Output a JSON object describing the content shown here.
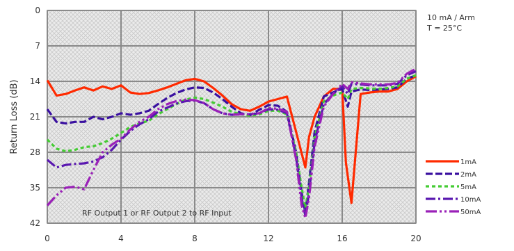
{
  "chart_data": {
    "type": "line",
    "title": "",
    "xlabel": "",
    "ylabel": "Return Loss (dB)",
    "xlim": [
      0,
      20
    ],
    "ylim": [
      0,
      42
    ],
    "y_inverted": true,
    "x_ticks": [
      "0",
      "4",
      "8",
      "12",
      "16",
      "20"
    ],
    "y_ticks": [
      "0",
      "7",
      "14",
      "21",
      "28",
      "35",
      "42"
    ],
    "grid": true,
    "legend_position": "right",
    "notes": [
      "10 mA / Arm",
      "T = 25°C"
    ],
    "annotation": "RF Output 1 or RF Output 2 to RF Input",
    "series": [
      {
        "name": "1mA",
        "color": "#ff2a00",
        "dash": "solid",
        "x": [
          0,
          0.5,
          1,
          1.5,
          2,
          2.5,
          3,
          3.5,
          4,
          4.5,
          5,
          5.5,
          6,
          6.5,
          7,
          7.5,
          8,
          8.5,
          9,
          9.5,
          10,
          10.5,
          11,
          11.5,
          12,
          12.5,
          13,
          13.5,
          14,
          14.2,
          14.5,
          15,
          15.5,
          16,
          16.2,
          16.5,
          17,
          17.5,
          18,
          18.5,
          19,
          19.5,
          20
        ],
        "y": [
          13.8,
          16.8,
          16.5,
          15.8,
          15.2,
          15.8,
          15.0,
          15.5,
          14.8,
          16.2,
          16.5,
          16.3,
          15.8,
          15.2,
          14.5,
          13.8,
          13.5,
          14.0,
          15.3,
          16.8,
          18.5,
          19.5,
          19.8,
          19.0,
          18.0,
          17.5,
          17.0,
          24.0,
          31.0,
          25.0,
          21.0,
          17.0,
          15.5,
          15.5,
          30.0,
          38.0,
          16.5,
          16.2,
          16.0,
          16.0,
          15.5,
          14.0,
          13.0
        ]
      },
      {
        "name": "2mA",
        "color": "#3a10a0",
        "dash": "10,4",
        "x": [
          0,
          0.5,
          1,
          1.5,
          2,
          2.5,
          3,
          3.5,
          4,
          4.5,
          5,
          5.5,
          6,
          6.5,
          7,
          7.5,
          8,
          8.5,
          9,
          9.5,
          10,
          10.5,
          11,
          11.5,
          12,
          12.5,
          13,
          13.5,
          13.8,
          14,
          14.2,
          14.5,
          15,
          15.5,
          16,
          16.3,
          16.5,
          17,
          17.5,
          18,
          18.5,
          19,
          19.5,
          20
        ],
        "y": [
          19.5,
          22.0,
          22.3,
          22.0,
          22.0,
          21.0,
          21.5,
          21.0,
          20.3,
          20.6,
          20.3,
          19.8,
          18.5,
          17.3,
          16.3,
          15.6,
          15.2,
          15.3,
          16.2,
          17.5,
          19.0,
          20.3,
          20.7,
          19.6,
          18.7,
          18.8,
          20.0,
          28.0,
          36.0,
          40.0,
          34.0,
          24.0,
          17.0,
          16.2,
          15.5,
          19.0,
          16.0,
          15.6,
          15.7,
          15.6,
          15.5,
          15.2,
          13.5,
          12.8
        ]
      },
      {
        "name": "5mA",
        "color": "#44cc33",
        "dash": "5,4",
        "x": [
          0,
          0.5,
          1,
          1.5,
          2,
          2.5,
          3,
          3.5,
          4,
          4.5,
          5,
          5.5,
          6,
          6.5,
          7,
          7.5,
          8,
          8.5,
          9,
          9.5,
          10,
          10.5,
          11,
          11.5,
          12,
          12.5,
          13,
          13.5,
          13.8,
          14,
          14.2,
          14.5,
          15,
          15.5,
          16,
          16.3,
          16.5,
          17,
          17.5,
          18,
          18.5,
          19,
          19.5,
          20
        ],
        "y": [
          25.5,
          27.3,
          27.8,
          27.5,
          27.0,
          26.8,
          26.2,
          25.3,
          24.2,
          23.0,
          22.3,
          21.8,
          20.5,
          19.5,
          18.5,
          17.6,
          17.2,
          17.5,
          18.2,
          19.0,
          20.0,
          20.5,
          20.8,
          20.5,
          19.8,
          19.8,
          20.5,
          28.0,
          35.0,
          39.0,
          35.0,
          25.0,
          18.0,
          16.8,
          16.2,
          17.5,
          15.5,
          15.3,
          15.4,
          15.5,
          15.3,
          15.0,
          13.5,
          12.8
        ]
      },
      {
        "name": "10mA",
        "color": "#5a18b0",
        "dash": "14,4,3,4",
        "x": [
          0,
          0.5,
          1,
          1.5,
          2,
          2.5,
          3,
          3.5,
          4,
          4.5,
          5,
          5.5,
          6,
          6.5,
          7,
          7.5,
          8,
          8.5,
          9,
          9.5,
          10,
          10.5,
          11,
          11.5,
          12,
          12.5,
          13,
          13.5,
          13.8,
          14,
          14.2,
          14.5,
          15,
          15.5,
          16,
          16.3,
          16.5,
          17,
          17.5,
          18,
          18.5,
          19,
          19.5,
          20
        ],
        "y": [
          29.5,
          31.0,
          30.5,
          30.3,
          30.2,
          29.8,
          29.0,
          27.5,
          25.5,
          23.8,
          22.5,
          21.5,
          20.0,
          19.2,
          18.4,
          17.9,
          17.8,
          18.3,
          19.5,
          20.3,
          20.6,
          20.5,
          20.5,
          20.3,
          19.5,
          19.6,
          20.3,
          29.0,
          37.0,
          40.5,
          36.0,
          26.0,
          18.5,
          16.5,
          15.0,
          16.5,
          14.5,
          14.6,
          14.8,
          14.8,
          14.8,
          14.5,
          12.8,
          12.0
        ]
      },
      {
        "name": "50mA",
        "color": "#9a20b8",
        "dash": "16,4,3,4,3,4",
        "x": [
          0,
          0.5,
          1,
          1.5,
          2,
          2.5,
          3,
          3.5,
          4,
          4.5,
          5,
          5.5,
          6,
          6.5,
          7,
          7.5,
          8,
          8.5,
          9,
          9.5,
          10,
          10.5,
          11,
          11.5,
          12,
          12.5,
          13,
          13.5,
          13.8,
          14,
          14.2,
          14.5,
          15,
          15.5,
          16,
          16.3,
          16.5,
          17,
          17.5,
          18,
          18.5,
          19,
          19.5,
          20
        ],
        "y": [
          38.5,
          36.5,
          35.0,
          34.8,
          35.3,
          31.5,
          28.0,
          26.5,
          25.3,
          23.5,
          22.0,
          21.0,
          19.5,
          18.5,
          17.9,
          17.6,
          17.7,
          18.3,
          19.5,
          20.3,
          20.6,
          20.5,
          20.5,
          20.3,
          19.3,
          19.4,
          20.0,
          29.5,
          38.5,
          41.0,
          37.0,
          27.0,
          19.0,
          16.5,
          14.5,
          15.5,
          14.2,
          14.4,
          14.6,
          14.6,
          14.6,
          14.3,
          12.5,
          11.5
        ]
      }
    ]
  }
}
